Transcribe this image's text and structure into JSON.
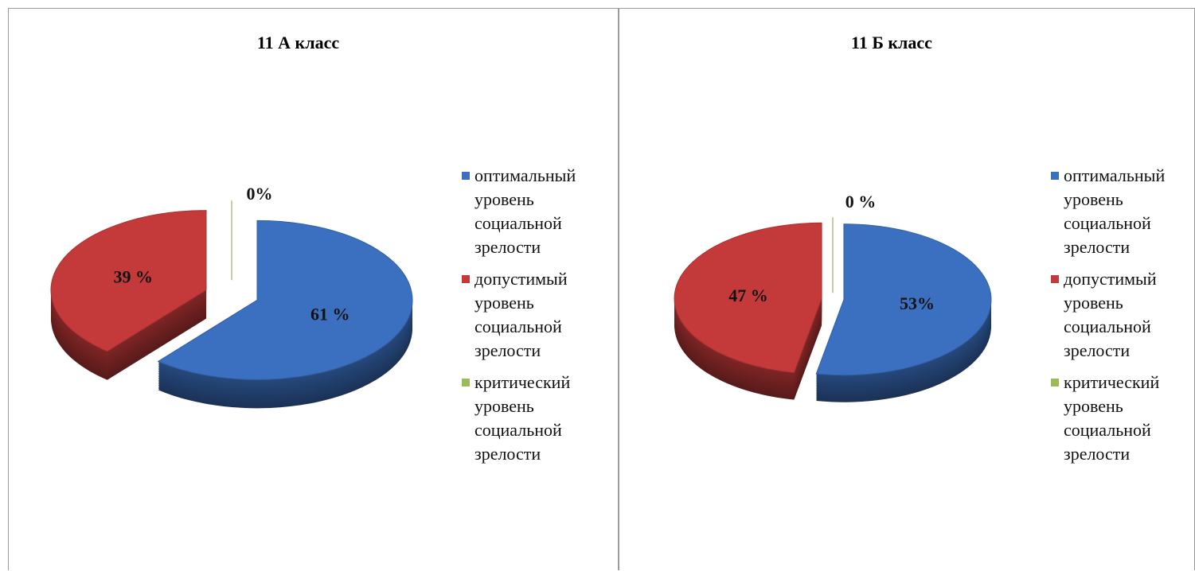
{
  "chart_data": [
    {
      "type": "pie",
      "title": "11 А класс",
      "categories": [
        "оптимальный уровень социальной зрелости",
        "допустимый уровень социальной зрелости",
        "критический уровень социальной зрелости"
      ],
      "values": [
        61,
        39,
        0
      ],
      "value_labels": [
        "61 %",
        "39 %",
        "0%"
      ],
      "colors": [
        "#3b70c0",
        "#c43a3a",
        "#9bbb59"
      ]
    },
    {
      "type": "pie",
      "title": "11 Б класс",
      "categories": [
        "оптимальный уровень социальной зрелости",
        "допустимый уровень социальной зрелости",
        "критический уровень социальной зрелости"
      ],
      "values": [
        53,
        47,
        0
      ],
      "value_labels": [
        "53%",
        "47 %",
        "0 %"
      ],
      "colors": [
        "#3b70c0",
        "#c43a3a",
        "#9bbb59"
      ]
    }
  ]
}
